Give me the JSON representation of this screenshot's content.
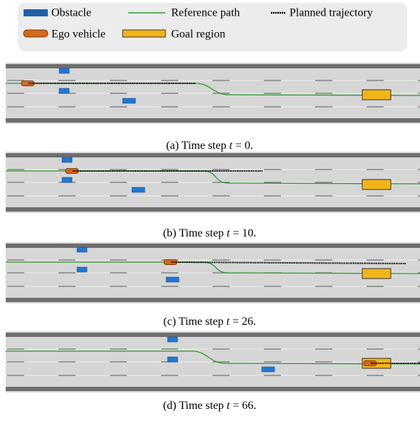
{
  "legend": {
    "items": [
      "Obstacle",
      "Reference path",
      "Planned trajectory",
      "Ego vehicle",
      "Goal region"
    ]
  },
  "panels": [
    {
      "caption": {
        "prefix": "(a) Time step",
        "var": "t",
        "rest": "= 0."
      }
    },
    {
      "caption": {
        "prefix": "(b) Time step",
        "var": "t",
        "rest": "= 10."
      }
    },
    {
      "caption": {
        "prefix": "(c) Time step",
        "var": "t",
        "rest": "= 26."
      }
    },
    {
      "caption": {
        "prefix": "(d) Time step",
        "var": "t",
        "rest": "= 66."
      }
    }
  ]
}
